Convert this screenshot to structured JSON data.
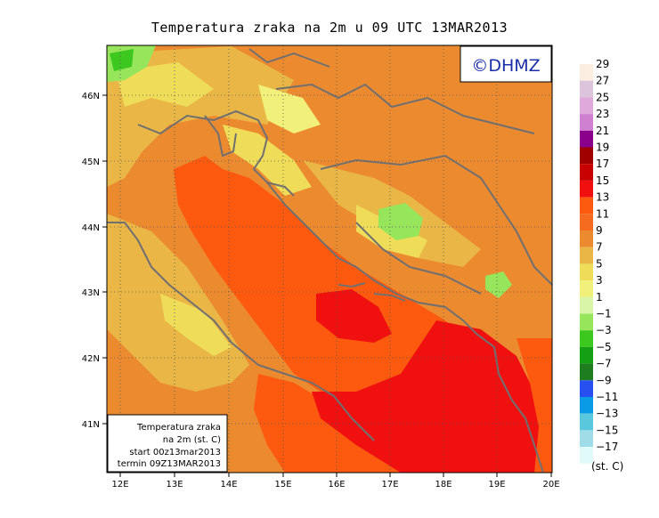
{
  "title": "Temperatura zraka na 2m u 09 UTC 13MAR2013",
  "watermark": "©DHMZ",
  "info_box": {
    "line1": "Temperatura zraka",
    "line2": "na 2m (st. C)",
    "line3": "start 00z13mar2013",
    "line4": "termin 09Z13MAR2013"
  },
  "lon_ticks": [
    "12E",
    "13E",
    "14E",
    "15E",
    "16E",
    "17E",
    "18E",
    "19E",
    "20E"
  ],
  "lat_ticks": [
    "41N",
    "42N",
    "43N",
    "44N",
    "45N",
    "46N"
  ],
  "legend": {
    "unit": "(st. C)",
    "labels": [
      "29",
      "27",
      "25",
      "23",
      "21",
      "19",
      "17",
      "15",
      "13",
      "11",
      "9",
      "7",
      "5",
      "3",
      "1",
      "−1",
      "−3",
      "−5",
      "−7",
      "−9",
      "−11",
      "−13",
      "−15",
      "−17"
    ],
    "colors": [
      "#fbeee0",
      "#dcc4dc",
      "#e0a9dc",
      "#d080d0",
      "#8b008b",
      "#a00000",
      "#c80000",
      "#f01010",
      "#fd5a10",
      "#f56b20",
      "#ec8a2f",
      "#eab646",
      "#efdd5a",
      "#f0f07a",
      "#d8f5a8",
      "#96e55a",
      "#3cc81e",
      "#14a014",
      "#1e7d1e",
      "#2850f0",
      "#0a9be6",
      "#5ac8dc",
      "#a0dce8",
      "#e0fafa"
    ]
  },
  "colors": {
    "warm_sea": "#fd5a10",
    "hot": "#f01010",
    "orange": "#ec8a2f",
    "yellow_orange": "#eab646",
    "yellow": "#efdd5a",
    "pale_yellow": "#f0f07a",
    "green": "#96e55a",
    "coast": "#707070"
  }
}
